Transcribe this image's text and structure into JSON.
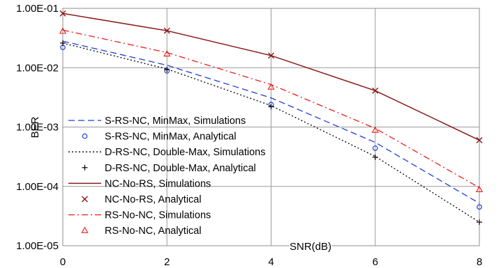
{
  "chart_data": {
    "type": "line",
    "title": "",
    "xlabel": "SNR(dB)",
    "ylabel": "BER",
    "x_ticks": [
      "0",
      "2",
      "4",
      "6",
      "8"
    ],
    "y_ticks": [
      "1.00E-05",
      "1.00E-04",
      "1.00E-03",
      "1.00E-02",
      "1.00E-01"
    ],
    "xlim": [
      0,
      8
    ],
    "ylim": [
      1e-05,
      0.1
    ],
    "y_scale": "log",
    "grid": true,
    "legend_position": "lower-left",
    "series": [
      {
        "name": "S-RS-NC, MinMax, Simulations",
        "style": "dashed",
        "marker": "none",
        "color": "#1f3fd8",
        "x": [
          0,
          2,
          4,
          6,
          8
        ],
        "y": [
          0.028,
          0.011,
          0.0031,
          0.00055,
          5.2e-05
        ]
      },
      {
        "name": "S-RS-NC, MinMax, Analytical",
        "style": "none",
        "marker": "circle",
        "color": "#1f3fd8",
        "x": [
          0,
          2,
          4,
          6,
          8
        ],
        "y": [
          0.022,
          0.0088,
          0.0024,
          0.00044,
          4.5e-05
        ]
      },
      {
        "name": "D-RS-NC, Double-Max, Simulations",
        "style": "dotted",
        "marker": "none",
        "color": "#000000",
        "x": [
          0,
          2,
          4,
          6,
          8
        ],
        "y": [
          0.026,
          0.0095,
          0.0023,
          0.00032,
          2.5e-05
        ]
      },
      {
        "name": "D-RS-NC, Double-Max, Analytical",
        "style": "none",
        "marker": "plus",
        "color": "#000000",
        "x": [
          0,
          2,
          4,
          6,
          8
        ],
        "y": [
          0.026,
          0.0093,
          0.0022,
          0.00031,
          2.5e-05
        ]
      },
      {
        "name": "NC-No-RS, Simulations",
        "style": "solid",
        "marker": "none",
        "color": "#8b1a1a",
        "x": [
          0,
          2,
          4,
          6,
          8
        ],
        "y": [
          0.082,
          0.042,
          0.016,
          0.0041,
          0.0006
        ]
      },
      {
        "name": "NC-No-RS, Analytical",
        "style": "none",
        "marker": "x",
        "color": "#8b1a1a",
        "x": [
          0,
          2,
          4,
          6,
          8
        ],
        "y": [
          0.082,
          0.042,
          0.016,
          0.0041,
          0.0006
        ]
      },
      {
        "name": "RS-No-NC, Simulations",
        "style": "dashdot",
        "marker": "none",
        "color": "#e8201c",
        "x": [
          0,
          2,
          4,
          6,
          8
        ],
        "y": [
          0.043,
          0.018,
          0.0052,
          0.00095,
          9.5e-05
        ]
      },
      {
        "name": "RS-No-NC, Analytical",
        "style": "none",
        "marker": "triangle",
        "color": "#e8201c",
        "x": [
          0,
          2,
          4,
          6,
          8
        ],
        "y": [
          0.041,
          0.017,
          0.0047,
          0.00088,
          8.8e-05
        ]
      }
    ]
  }
}
